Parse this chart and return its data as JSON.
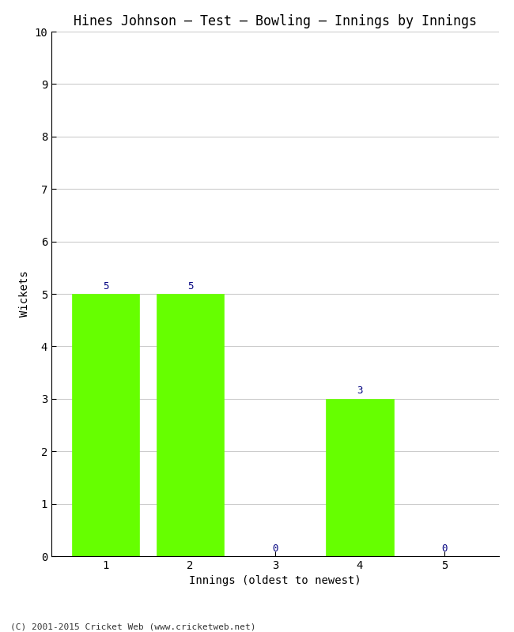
{
  "title": "Hines Johnson – Test – Bowling – Innings by Innings",
  "xlabel": "Innings (oldest to newest)",
  "ylabel": "Wickets",
  "categories": [
    1,
    2,
    3,
    4,
    5
  ],
  "values": [
    5,
    5,
    0,
    3,
    0
  ],
  "bar_color": "#66ff00",
  "bar_edge_color": "#66ff00",
  "label_color": "#000080",
  "ylim": [
    0,
    10
  ],
  "yticks": [
    0,
    1,
    2,
    3,
    4,
    5,
    6,
    7,
    8,
    9,
    10
  ],
  "background_color": "#ffffff",
  "grid_color": "#cccccc",
  "title_fontsize": 12,
  "axis_label_fontsize": 10,
  "tick_fontsize": 10,
  "annotation_fontsize": 9,
  "footer": "(C) 2001-2015 Cricket Web (www.cricketweb.net)",
  "footer_fontsize": 8
}
